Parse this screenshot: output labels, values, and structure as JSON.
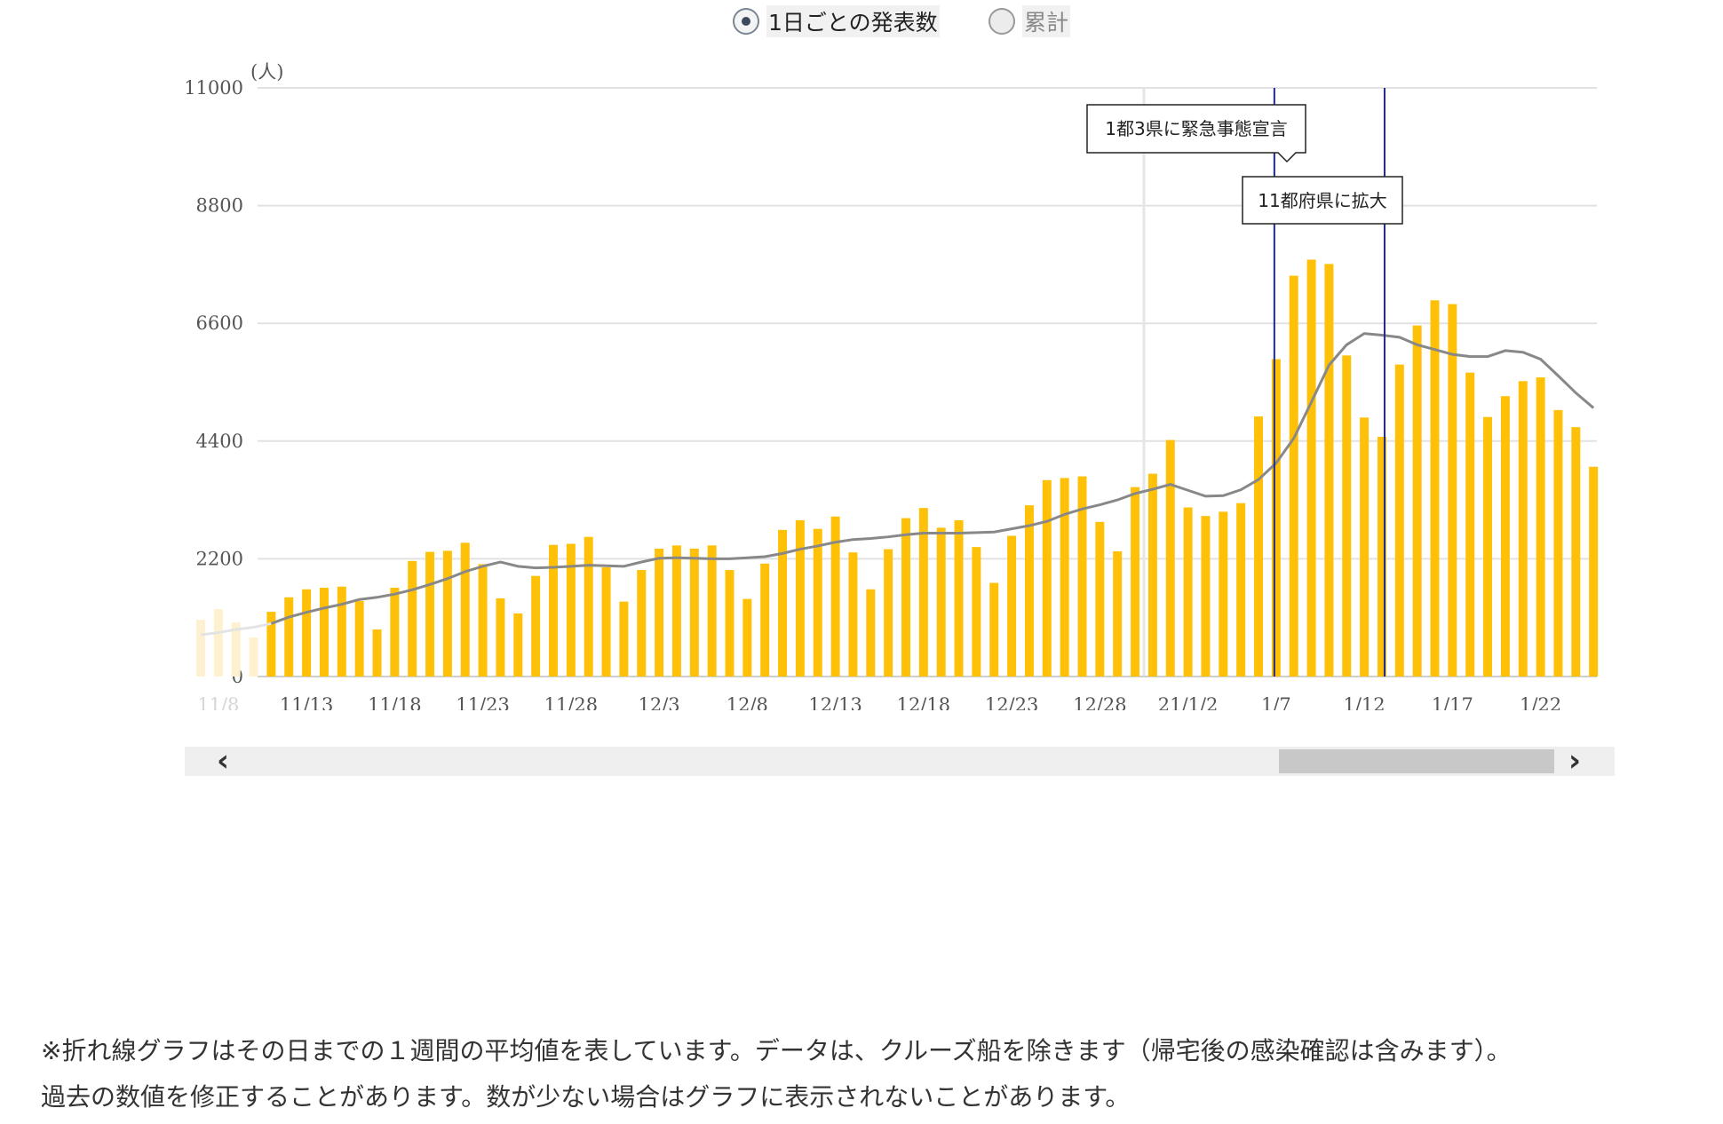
{
  "controls": {
    "radio_daily": "1日ごとの発表数",
    "radio_cumulative": "累計",
    "selected": "daily"
  },
  "chart_data": {
    "type": "bar",
    "unit_label": "(人)",
    "ylim": [
      0,
      11000
    ],
    "y_ticks": [
      "11000",
      "8800",
      "6600",
      "4400",
      "2200",
      "0"
    ],
    "x_tick_labels": [
      "11/8",
      "11/13",
      "11/18",
      "11/23",
      "11/28",
      "12/3",
      "12/8",
      "12/13",
      "12/18",
      "12/23",
      "12/28",
      "21/1/2",
      "1/7",
      "1/12",
      "1/17",
      "1/22"
    ],
    "series": [
      {
        "type": "bar",
        "color": "#ffc107",
        "values": [
          1060,
          1260,
          1010,
          730,
          1210,
          1480,
          1630,
          1660,
          1680,
          1410,
          880,
          1660,
          2160,
          2330,
          2350,
          2500,
          2100,
          1460,
          1180,
          1880,
          2460,
          2480,
          2610,
          2040,
          1400,
          1990,
          2390,
          2450,
          2390,
          2450,
          1990,
          1450,
          2110,
          2740,
          2920,
          2760,
          2990,
          2320,
          1630,
          2380,
          2960,
          3150,
          2780,
          2920,
          2420,
          1750,
          2630,
          3200,
          3670,
          3710,
          3740,
          2890,
          2340,
          3540,
          3790,
          4420,
          3160,
          3000,
          3080,
          3240,
          4860,
          5930,
          7490,
          7790,
          7710,
          6000,
          4840,
          4480,
          5830,
          6560,
          7030,
          6960,
          5680,
          4850,
          5240,
          5520,
          5590,
          4980,
          4660,
          3920
        ]
      },
      {
        "type": "line",
        "color": "#888888",
        "values": [
          780,
          820,
          880,
          920,
          990,
          1110,
          1200,
          1280,
          1350,
          1440,
          1480,
          1540,
          1620,
          1720,
          1830,
          1960,
          2060,
          2140,
          2060,
          2030,
          2040,
          2060,
          2080,
          2070,
          2060,
          2140,
          2210,
          2220,
          2210,
          2200,
          2200,
          2220,
          2240,
          2300,
          2380,
          2440,
          2510,
          2560,
          2580,
          2610,
          2650,
          2680,
          2680,
          2680,
          2690,
          2700,
          2760,
          2820,
          2900,
          3030,
          3130,
          3210,
          3300,
          3420,
          3500,
          3590,
          3480,
          3370,
          3380,
          3490,
          3680,
          3990,
          4450,
          5130,
          5820,
          6200,
          6410,
          6380,
          6340,
          6200,
          6110,
          6020,
          5980,
          5980,
          6090,
          6060,
          5930,
          5620,
          5300,
          5020
        ]
      }
    ],
    "annotations": [
      "1都3県に緊急事態宣言",
      "11都府県に拡大"
    ]
  },
  "footnote": {
    "line1": "※折れ線グラフはその日までの１週間の平均値を表しています。データは、クルーズ船を除きます（帰宅後の感染確認は含みます）。",
    "line2": "過去の数値を修正することがあります。数が少ない場合はグラフに表示されないことがあります。"
  }
}
